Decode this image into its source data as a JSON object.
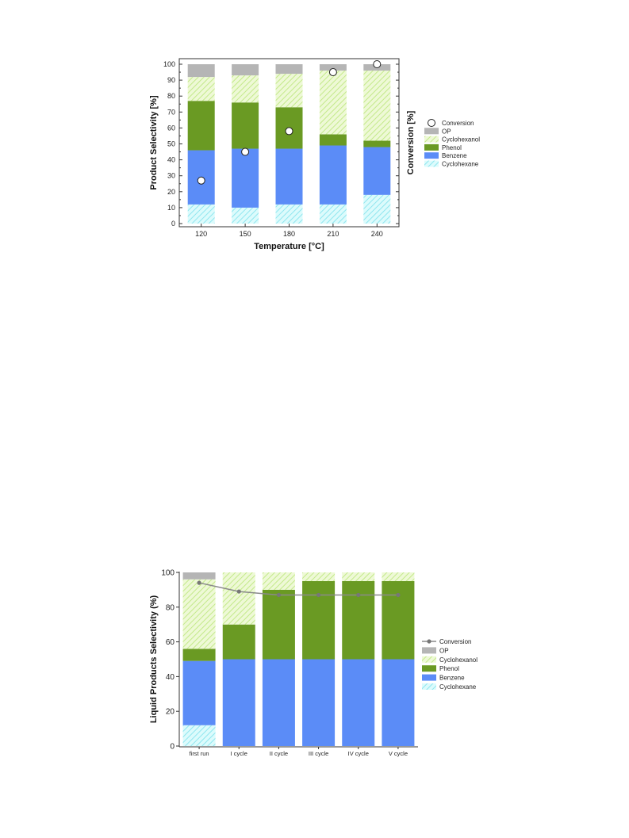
{
  "chart_data": [
    {
      "type": "bar",
      "stacked": true,
      "xlabel": "Temperature [°C]",
      "ylabel": "Product Selectivity [%]",
      "y2label": "Conversion [%]",
      "categories": [
        "120",
        "150",
        "180",
        "210",
        "240"
      ],
      "ylim": [
        0,
        100
      ],
      "yticks": [
        "0",
        "10",
        "20",
        "30",
        "40",
        "50",
        "60",
        "70",
        "80",
        "90",
        "100"
      ],
      "series": [
        {
          "name": "Cyclohexane",
          "color": "#bff3f7",
          "pattern": "hatch",
          "values": [
            12,
            10,
            12,
            12,
            18
          ]
        },
        {
          "name": "Benzene",
          "color": "#5b8cf7",
          "values": [
            34,
            37,
            35,
            37,
            30
          ]
        },
        {
          "name": "Phenol",
          "color": "#6a9a23",
          "values": [
            31,
            29,
            26,
            7,
            4
          ]
        },
        {
          "name": "Cyclohexanol",
          "color": "#d9f0a8",
          "pattern": "hatch",
          "values": [
            15,
            17,
            21,
            40,
            44
          ]
        },
        {
          "name": "OP",
          "color": "#b5b5b5",
          "values": [
            8,
            7,
            6,
            4,
            4
          ]
        }
      ],
      "conversion": {
        "name": "Conversion",
        "values": [
          27,
          45,
          58,
          95,
          100
        ]
      },
      "legend": [
        "Conversion",
        "OP",
        "Cyclohexanol",
        "Phenol",
        "Benzene",
        "Cyclohexane"
      ],
      "legend_position": "right"
    },
    {
      "type": "bar",
      "stacked": true,
      "xlabel": "",
      "ylabel": "Liquid Products Selectivity (%)",
      "categories": [
        "first run",
        "I cycle",
        "II cycle",
        "III cycle",
        "IV cycle",
        "V cycle"
      ],
      "ylim": [
        0,
        100
      ],
      "yticks": [
        "0",
        "20",
        "40",
        "60",
        "80",
        "100"
      ],
      "series": [
        {
          "name": "Cyclohexane",
          "color": "#bff3f7",
          "pattern": "hatch",
          "values": [
            12,
            0,
            0,
            0,
            0,
            0
          ]
        },
        {
          "name": "Benzene",
          "color": "#5b8cf7",
          "values": [
            37,
            50,
            50,
            50,
            50,
            50
          ]
        },
        {
          "name": "Phenol",
          "color": "#6a9a23",
          "values": [
            7,
            20,
            40,
            45,
            45,
            45
          ]
        },
        {
          "name": "Cyclohexanol",
          "color": "#d9f0a8",
          "pattern": "hatch",
          "values": [
            40,
            30,
            10,
            5,
            5,
            5
          ]
        },
        {
          "name": "OP",
          "color": "#b5b5b5",
          "values": [
            4,
            0,
            0,
            0,
            0,
            0
          ]
        }
      ],
      "conversion": {
        "name": "Conversion",
        "values": [
          94,
          89,
          87,
          87,
          87,
          87
        ]
      },
      "legend": [
        "Conversion",
        "OP",
        "Cyclohexanol",
        "Phenol",
        "Benzene",
        "Cyclohexane"
      ],
      "legend_position": "right"
    }
  ]
}
